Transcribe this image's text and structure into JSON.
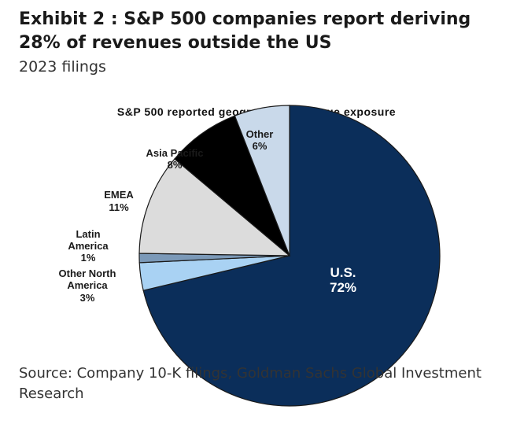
{
  "header": {
    "title": "Exhibit 2 : S&P 500 companies report deriving 28% of revenues outside the US",
    "subtitle": "2023 filings"
  },
  "chart_data": {
    "type": "pie",
    "title": "S&P 500 reported geographical revenue exposure",
    "slices": [
      {
        "label": "U.S.",
        "value": 72,
        "display": "72%",
        "color": "#0b2e5a"
      },
      {
        "label": "Other North America",
        "value": 3,
        "display": "3%",
        "color": "#a9d2f3"
      },
      {
        "label": "Latin America",
        "value": 1,
        "display": "1%",
        "color": "#7b99b8"
      },
      {
        "label": "EMEA",
        "value": 11,
        "display": "11%",
        "color": "#dcdcdc"
      },
      {
        "label": "Asia Pacific",
        "value": 8,
        "display": "8%",
        "color": "#000000"
      },
      {
        "label": "Other",
        "value": 6,
        "display": "6%",
        "color": "#c9d9ea"
      }
    ],
    "start": "12 o'clock",
    "direction": "clockwise"
  },
  "footer": {
    "source": "Source: Company 10-K filings, Goldman Sachs Global Investment Research"
  }
}
